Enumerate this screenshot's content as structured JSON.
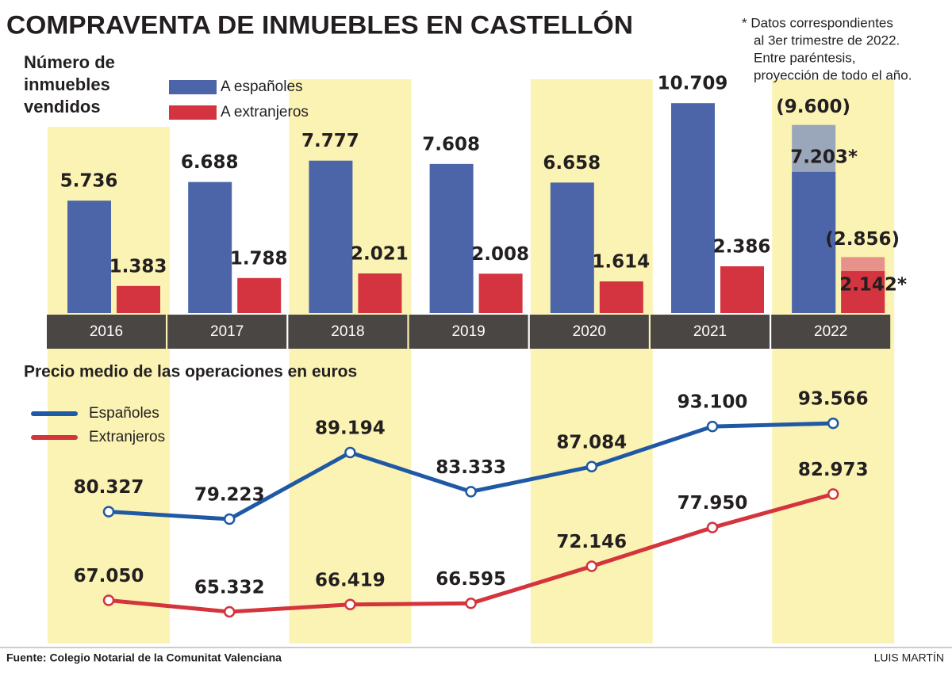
{
  "title": "COMPRAVENTA DE INMUEBLES EN CASTELLÓN",
  "note": [
    "* Datos correspondientes",
    "al 3er trimestre de 2022.",
    "Entre paréntesis,",
    "proyección de todo el año."
  ],
  "source": "Fuente: Colegio Notarial de la Comunitat Valenciana",
  "author": "LUIS MARTÍN",
  "chart_data": [
    {
      "type": "bar",
      "title": [
        "Número de",
        "inmuebles",
        "vendidos"
      ],
      "categories": [
        "2016",
        "2017",
        "2018",
        "2019",
        "2020",
        "2021",
        "2022"
      ],
      "ylim": [
        0,
        11000
      ],
      "series": [
        {
          "name": "A españoles",
          "color": "#4b65a8",
          "projected_color": "#9aa6ba",
          "values": [
            5736,
            6688,
            7777,
            7608,
            6658,
            10709,
            7203
          ],
          "value_labels": [
            "5.736",
            "6.688",
            "7.777",
            "7.608",
            "6.658",
            "10.709",
            "7.203*"
          ],
          "projected_values": [
            null,
            null,
            null,
            null,
            null,
            null,
            9600
          ],
          "projected_labels": [
            null,
            null,
            null,
            null,
            null,
            null,
            "(9.600)"
          ]
        },
        {
          "name": "A extranjeros",
          "color": "#d3343f",
          "projected_color": "#e8918a",
          "values": [
            1383,
            1788,
            2021,
            2008,
            1614,
            2386,
            2142
          ],
          "value_labels": [
            "1.383",
            "1.788",
            "2.021",
            "2.008",
            "1.614",
            "2.386",
            "2.142*"
          ],
          "projected_values": [
            null,
            null,
            null,
            null,
            null,
            null,
            2856
          ],
          "projected_labels": [
            null,
            null,
            null,
            null,
            null,
            null,
            "(2.856)"
          ]
        }
      ]
    },
    {
      "type": "line",
      "title": "Precio medio de las operaciones en euros",
      "ylim": [
        62000,
        100000
      ],
      "series": [
        {
          "name": "Españoles",
          "color": "#1f59a5",
          "values": [
            80327,
            79223,
            89194,
            83333,
            87084,
            93100,
            93566
          ],
          "value_labels": [
            "80.327",
            "79.223",
            "89.194",
            "83.333",
            "87.084",
            "93.100",
            "93.566"
          ]
        },
        {
          "name": "Extranjeros",
          "color": "#d4343c",
          "values": [
            67050,
            65332,
            66419,
            66595,
            72146,
            77950,
            82973
          ],
          "value_labels": [
            "67.050",
            "65.332",
            "66.419",
            "66.595",
            "72.146",
            "77.950",
            "82.973"
          ]
        }
      ]
    }
  ]
}
